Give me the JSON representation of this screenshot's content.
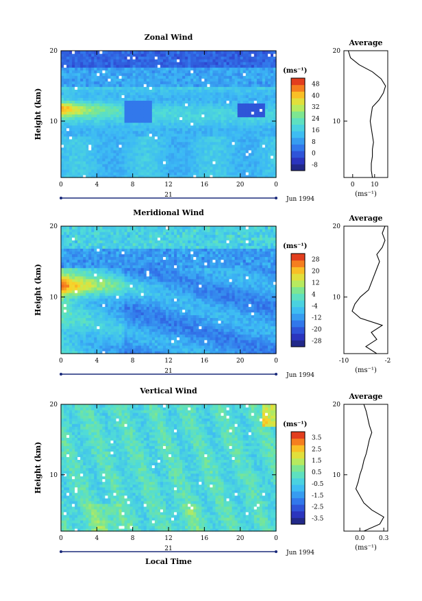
{
  "chart_data": [
    {
      "type": "heatmap",
      "title": "Zonal Wind",
      "ylabel": "Height (km)",
      "ylim": [
        2,
        20
      ],
      "yticks": [
        10,
        20
      ],
      "xlim": [
        0,
        24
      ],
      "xticks": [
        "0",
        "4",
        "8",
        "12",
        "16",
        "20",
        "0"
      ],
      "date_label": "21",
      "month_label": "Jun 1994",
      "colorbar": {
        "unit": "(ms⁻¹)",
        "ticks": [
          "48",
          "40",
          "32",
          "24",
          "16",
          "8",
          "0",
          "-8"
        ],
        "range": [
          -8,
          52
        ]
      },
      "profile": {
        "title": "Average",
        "xlabel": "(ms⁻¹)",
        "xticks": [
          "0",
          "10"
        ],
        "xlim": [
          -4,
          16
        ],
        "yticks": [
          "10",
          "20"
        ],
        "height": [
          2,
          3,
          4,
          5,
          6,
          7,
          8,
          9,
          10,
          11,
          12,
          13,
          14,
          15,
          16,
          17,
          18,
          19,
          20
        ],
        "value": [
          9,
          8.5,
          8.5,
          9,
          9,
          9.5,
          9,
          8.5,
          8,
          8.5,
          9,
          12,
          14,
          15,
          13,
          9,
          3,
          -1,
          -2
        ]
      },
      "field": {
        "jet_height": 11.8,
        "jet_speed": 44,
        "low_speed_top": -6
      }
    },
    {
      "type": "heatmap",
      "title": "Meridional Wind",
      "ylabel": "Height (km)",
      "ylim": [
        2,
        20
      ],
      "yticks": [
        10,
        20
      ],
      "xlim": [
        0,
        24
      ],
      "xticks": [
        "0",
        "4",
        "8",
        "12",
        "16",
        "20",
        "0"
      ],
      "date_label": "21",
      "month_label": "Jun 1994",
      "colorbar": {
        "unit": "(ms⁻¹)",
        "ticks": [
          "28",
          "20",
          "12",
          "4",
          "-4",
          "-12",
          "-20",
          "-28"
        ],
        "range": [
          -32,
          32
        ]
      },
      "profile": {
        "title": "Average",
        "xlabel": "(ms⁻¹)",
        "xticks": [
          "-10",
          "-2"
        ],
        "xlim": [
          -10,
          -2
        ],
        "yticks": [
          "10",
          "20"
        ],
        "height": [
          2,
          3,
          4,
          5,
          6,
          7,
          8,
          9,
          10,
          11,
          12,
          13,
          14,
          15,
          16,
          17,
          18,
          19,
          20
        ],
        "value": [
          -4,
          -6,
          -4,
          -5,
          -3,
          -7,
          -8.5,
          -8,
          -7,
          -5.5,
          -5,
          -4.5,
          -4,
          -3.5,
          -4,
          -3,
          -2.5,
          -3,
          -2.5
        ]
      },
      "field": {
        "jet_height": 11.5,
        "jet_speed": 24
      }
    },
    {
      "type": "heatmap",
      "title": "Vertical Wind",
      "ylabel": "Height (km)",
      "ylim": [
        2,
        20
      ],
      "yticks": [
        10,
        20
      ],
      "xlim": [
        0,
        24
      ],
      "xticks": [
        "0",
        "4",
        "8",
        "12",
        "16",
        "20",
        "0"
      ],
      "date_label": "21",
      "month_label": "Jun 1994",
      "xlabel": "Local Time",
      "colorbar": {
        "unit": "(ms⁻¹)",
        "ticks": [
          "3.5",
          "2.5",
          "1.5",
          "0.5",
          "-0.5",
          "-1.5",
          "-2.5",
          "-3.5"
        ],
        "range": [
          -4,
          4
        ]
      },
      "profile": {
        "title": "Average",
        "xlabel": "(ms⁻¹)",
        "xticks": [
          "0.0",
          "0.3"
        ],
        "xlim": [
          -0.2,
          0.35
        ],
        "yticks": [
          "10",
          "20"
        ],
        "height": [
          2,
          3,
          4,
          5,
          6,
          7,
          8,
          9,
          10,
          11,
          12,
          13,
          14,
          15,
          16,
          17,
          18,
          19,
          20
        ],
        "value": [
          0.05,
          0.25,
          0.3,
          0.15,
          0.05,
          0.0,
          -0.05,
          -0.02,
          0.0,
          0.03,
          0.05,
          0.08,
          0.1,
          0.12,
          0.15,
          0.12,
          0.1,
          0.08,
          0.05
        ]
      },
      "field": {
        "jet_height": 4,
        "jet_speed": 1
      }
    }
  ]
}
